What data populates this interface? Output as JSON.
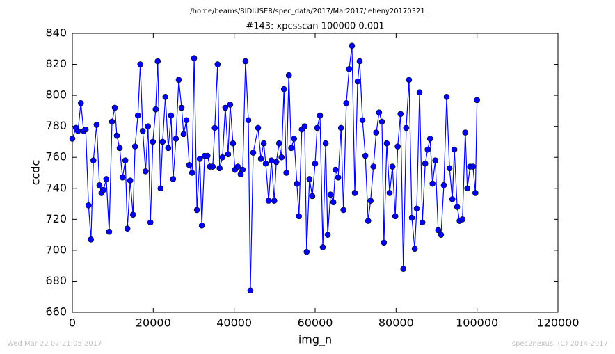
{
  "chart_data": {
    "type": "line",
    "suptitle": "/home/beams/8IDIUSER/spec_data/2017/Mar2017/leheny20170321",
    "title": "#143: xpcsscan 100000 0.001",
    "xlabel": "img_n",
    "ylabel": "ccdc",
    "footer_left": "Wed Mar 22 07:21:05 2017",
    "footer_right": "spec2nexus, (C) 2014-2017",
    "color": "#0000ff",
    "marker": "o",
    "x": [
      0,
      900,
      1400,
      2100,
      2800,
      3300,
      4000,
      4600,
      5200,
      6000,
      6700,
      7200,
      7700,
      8400,
      9100,
      9800,
      10500,
      11000,
      11700,
      12400,
      13100,
      13600,
      14300,
      15000,
      15500,
      16200,
      16800,
      17400,
      18100,
      18700,
      19300,
      19900,
      20600,
      21100,
      21800,
      22300,
      23000,
      23700,
      24400,
      24900,
      25600,
      26300,
      27000,
      27500,
      28200,
      28900,
      29600,
      30100,
      30800,
      31500,
      32000,
      32700,
      33400,
      34000,
      34700,
      35200,
      35900,
      36400,
      37100,
      37800,
      38500,
      39000,
      39700,
      40200,
      40900,
      41600,
      42100,
      42800,
      43500,
      44000,
      44700,
      45900,
      46600,
      47300,
      47800,
      48500,
      49200,
      49900,
      50400,
      51100,
      51700,
      52300,
      52900,
      53500,
      54100,
      54800,
      55500,
      56000,
      56700,
      57400,
      57900,
      58600,
      59300,
      60000,
      60500,
      61200,
      61900,
      62600,
      63100,
      63800,
      64500,
      65000,
      65700,
      66400,
      67000,
      67700,
      68400,
      69100,
      69800,
      70500,
      71000,
      71700,
      72400,
      73100,
      73700,
      74400,
      75100,
      75800,
      76500,
      77000,
      77700,
      78400,
      79100,
      79800,
      80400,
      81100,
      81800,
      82500,
      83200,
      83900,
      84600,
      85100,
      85800,
      86500,
      87200,
      87800,
      88400,
      89000,
      89700,
      90400,
      91100,
      91800,
      92500,
      93200,
      93900,
      94400,
      95100,
      95700,
      96400,
      97100,
      97600,
      98300,
      99000,
      99600,
      100000
    ],
    "values": [
      772,
      779,
      777,
      795,
      777,
      778,
      729,
      707,
      758,
      781,
      742,
      737,
      739,
      746,
      712,
      783,
      792,
      774,
      766,
      747,
      758,
      714,
      745,
      723,
      767,
      787,
      820,
      777,
      751,
      780,
      718,
      770,
      791,
      822,
      740,
      770,
      799,
      766,
      787,
      746,
      772,
      810,
      792,
      775,
      784,
      755,
      750,
      824,
      726,
      759,
      716,
      761,
      761,
      754,
      754,
      779,
      820,
      753,
      760,
      792,
      762,
      794,
      769,
      752,
      754,
      749,
      752,
      822,
      784,
      674,
      763,
      779,
      759,
      769,
      756,
      732,
      758,
      732,
      757,
      769,
      760,
      804,
      750,
      813,
      766,
      772,
      743,
      722,
      778,
      780,
      699,
      746,
      735,
      756,
      779,
      787,
      702,
      769,
      710,
      736,
      731,
      752,
      747,
      779,
      726,
      795,
      817,
      832,
      737,
      809,
      822,
      784,
      761,
      719,
      732,
      754,
      776,
      789,
      783,
      705,
      769,
      737,
      754,
      722,
      767,
      788,
      688,
      779,
      810,
      721,
      701,
      727,
      802,
      718,
      756,
      765,
      772,
      743,
      758,
      713,
      710,
      742,
      799,
      753,
      733,
      765,
      728,
      719,
      720,
      776,
      740,
      754,
      754,
      737,
      797
    ],
    "xlim": [
      0,
      120000
    ],
    "xticks": [
      0,
      20000,
      40000,
      60000,
      80000,
      100000,
      120000
    ],
    "ylim": [
      660,
      840
    ],
    "yticks": [
      660,
      680,
      700,
      720,
      740,
      760,
      780,
      800,
      820,
      840
    ]
  }
}
